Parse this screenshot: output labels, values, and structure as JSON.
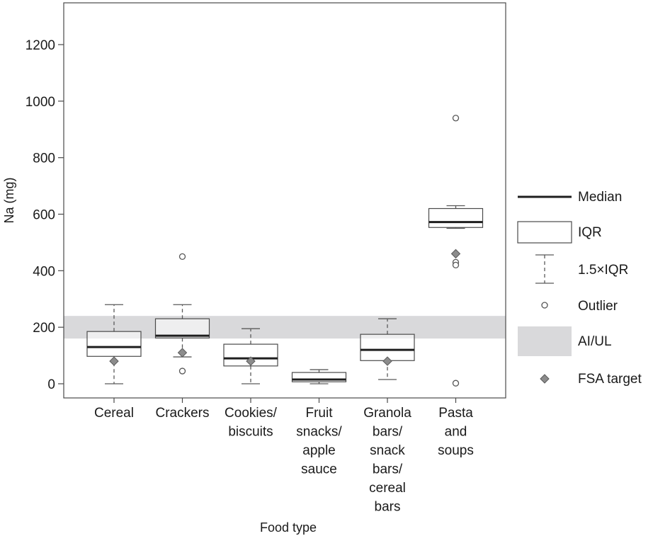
{
  "chart_data": {
    "type": "boxplot",
    "title": "",
    "xlabel": "Food type",
    "ylabel": "Na (mg)",
    "ylim": [
      -50,
      1350
    ],
    "yticks": [
      0,
      200,
      400,
      600,
      800,
      1000,
      1200
    ],
    "grid": false,
    "legend_position": "right",
    "reference_band": {
      "label": "AI/UL",
      "y_min": 160,
      "y_max": 240,
      "color": "#d9d9db"
    },
    "categories": [
      {
        "lines": [
          "Cereal"
        ],
        "q1": 97,
        "median": 130,
        "q3": 185,
        "whisker_low": 0,
        "whisker_high": 280,
        "outliers": [],
        "fsa_target": 80
      },
      {
        "lines": [
          "Crackers"
        ],
        "q1": 162,
        "median": 170,
        "q3": 230,
        "whisker_low": 95,
        "whisker_high": 280,
        "outliers": [
          450,
          45
        ],
        "fsa_target": 110
      },
      {
        "lines": [
          "Cookies/",
          "biscuits"
        ],
        "q1": 63,
        "median": 90,
        "q3": 140,
        "whisker_low": 0,
        "whisker_high": 195,
        "outliers": [],
        "fsa_target": 80
      },
      {
        "lines": [
          "Fruit",
          "snacks/",
          "apple",
          "sauce"
        ],
        "q1": 7,
        "median": 15,
        "q3": 40,
        "whisker_low": 0,
        "whisker_high": 50,
        "outliers": [],
        "fsa_target": null
      },
      {
        "lines": [
          "Granola",
          "bars/",
          "snack",
          "bars/",
          "cereal",
          "bars"
        ],
        "q1": 82,
        "median": 120,
        "q3": 175,
        "whisker_low": 15,
        "whisker_high": 230,
        "outliers": [],
        "fsa_target": 80
      },
      {
        "lines": [
          "Pasta",
          "and",
          "soups"
        ],
        "q1": 553,
        "median": 572,
        "q3": 620,
        "whisker_low": 550,
        "whisker_high": 630,
        "outliers": [
          940,
          430,
          420,
          2
        ],
        "fsa_target": 460
      }
    ],
    "legend": {
      "median": "Median",
      "iqr": "IQR",
      "whisker": "1.5×IQR",
      "outlier": "Outlier",
      "band": "AI/UL",
      "fsa": "FSA target"
    },
    "colors": {
      "box_stroke": "#4a4a4a",
      "median": "#1e1e1e",
      "whisker": "#5a5a5a",
      "fsa_fill": "#8c8c8c",
      "frame": "#4a4a4a"
    }
  }
}
